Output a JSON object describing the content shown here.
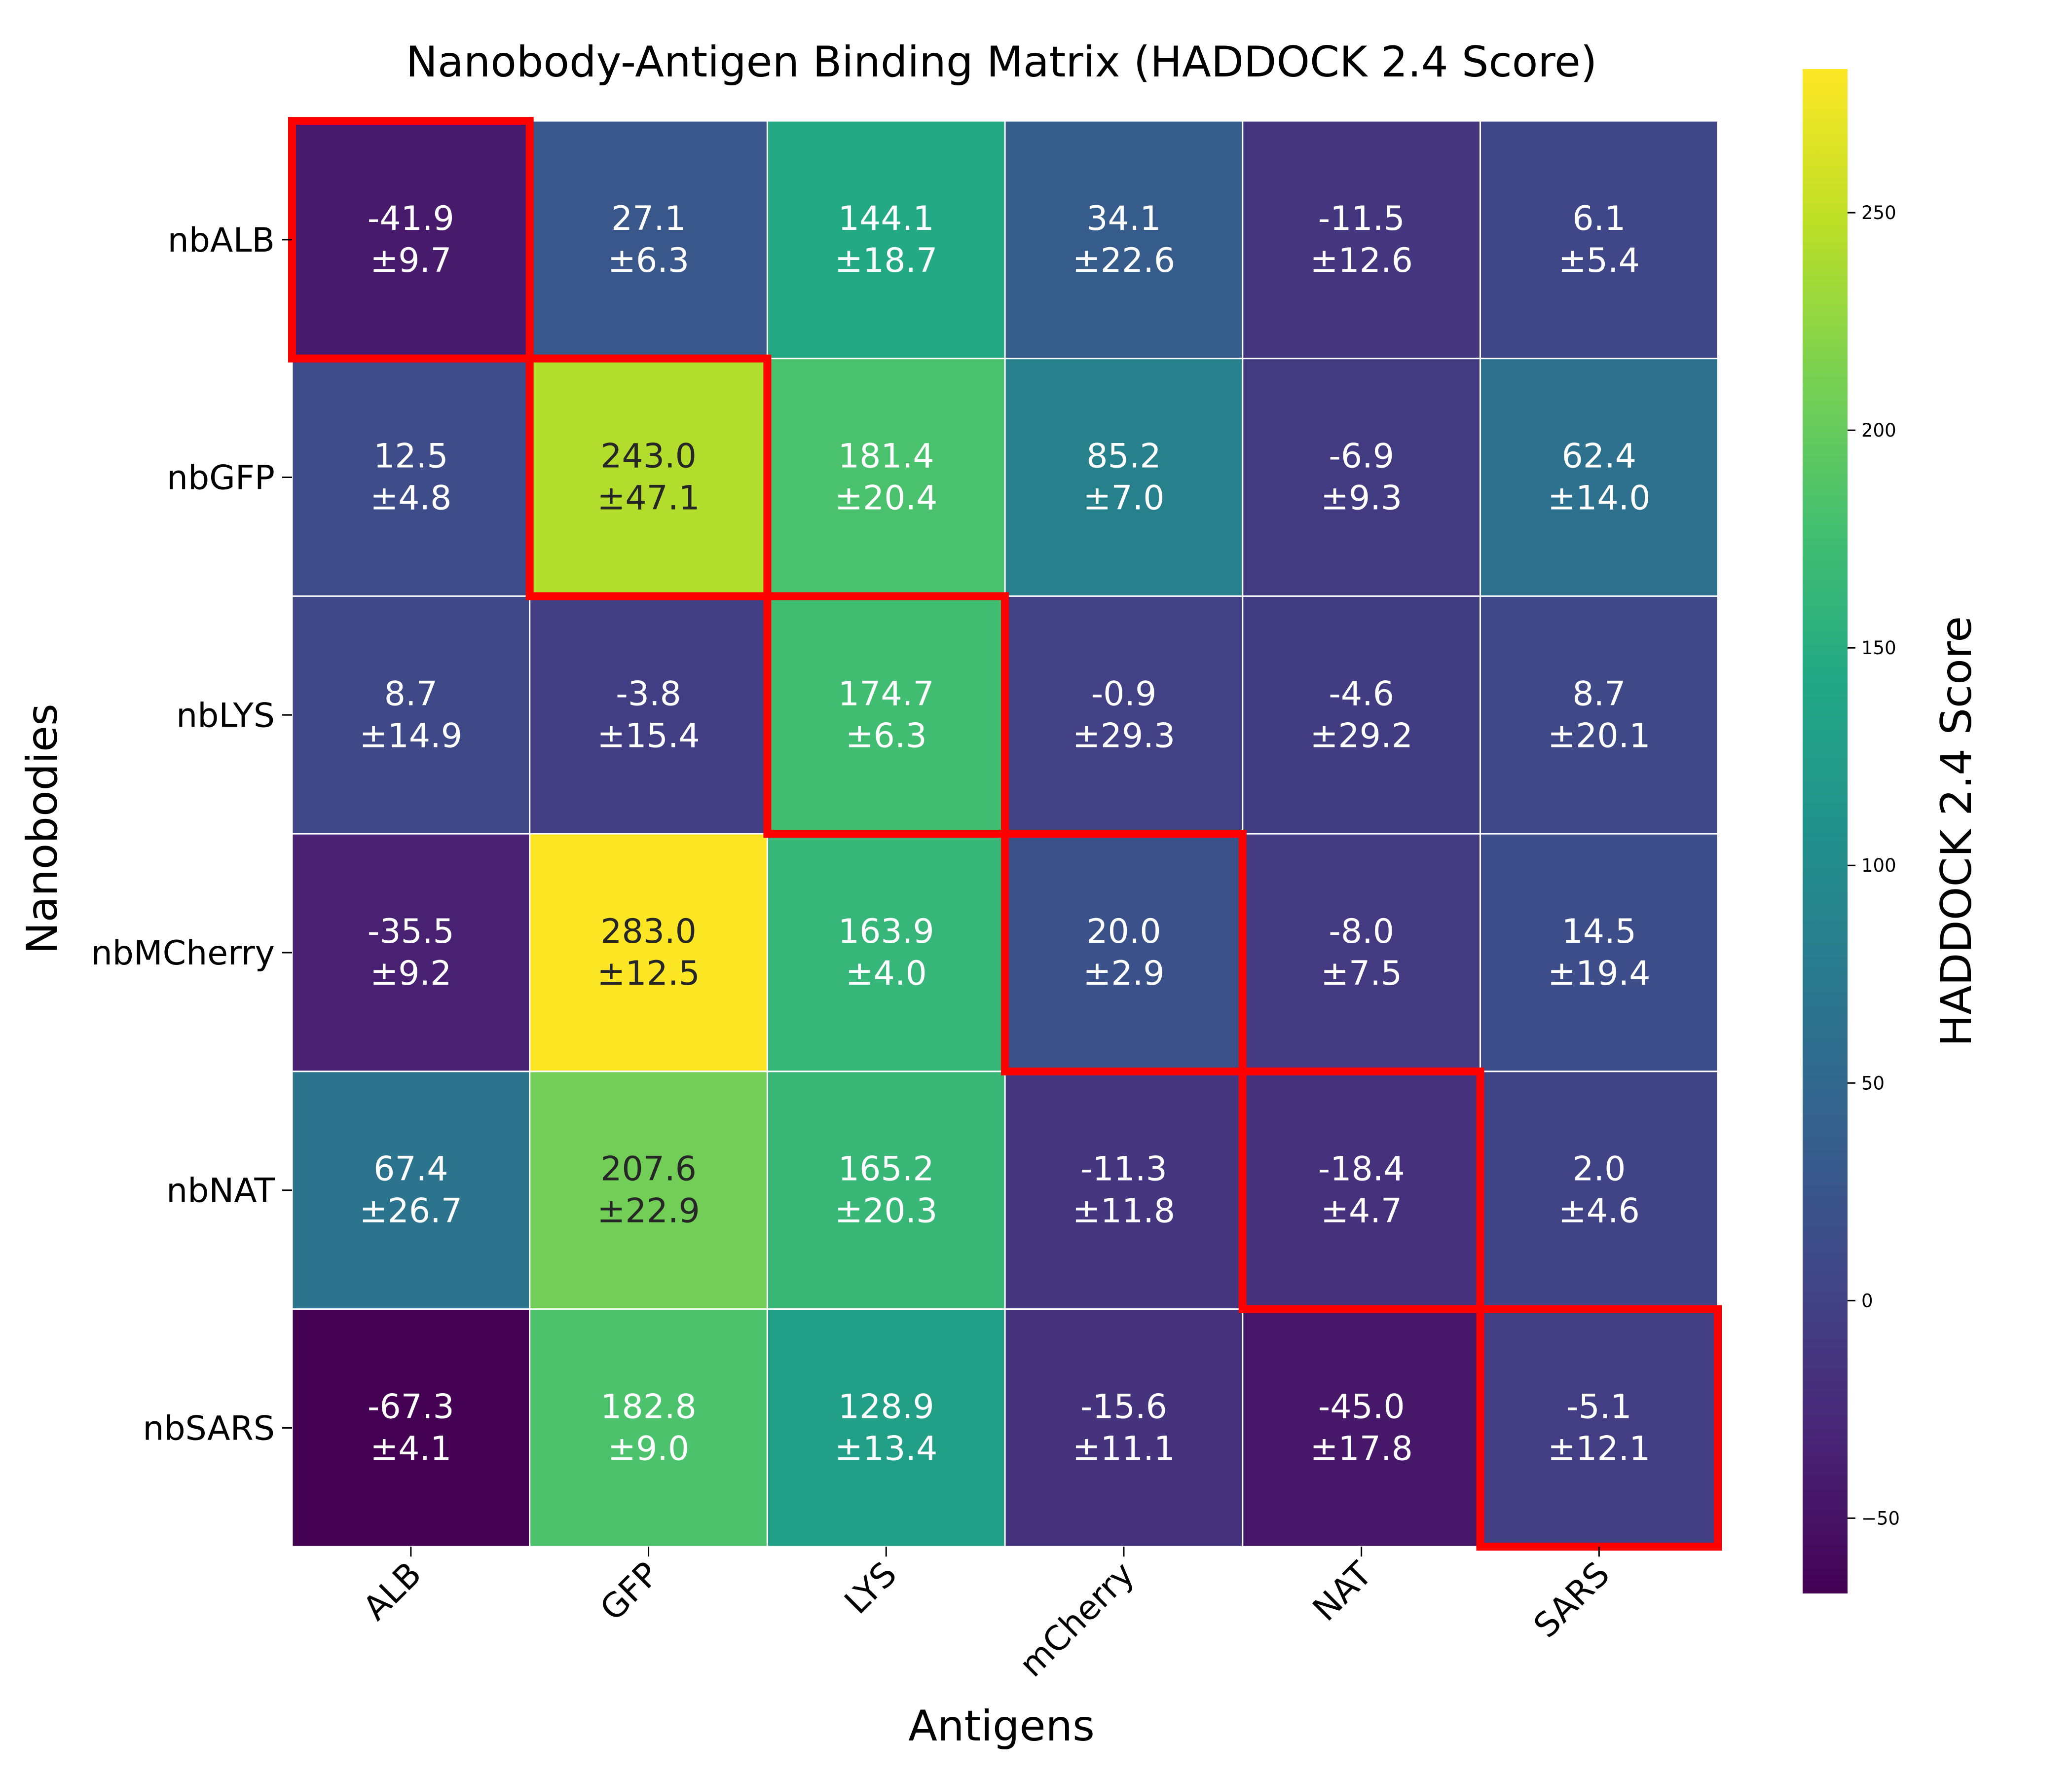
{
  "chart_data": {
    "type": "heatmap",
    "title": "Nanobody-Antigen Binding Matrix (HADDOCK 2.4 Score)",
    "xlabel": "Antigens",
    "ylabel": "Nanobodies",
    "x_categories": [
      "ALB",
      "GFP",
      "LYS",
      "mCherry",
      "NAT",
      "SARS"
    ],
    "y_categories": [
      "nbALB",
      "nbGFP",
      "nbLYS",
      "nbMCherry",
      "nbNAT",
      "nbSARS"
    ],
    "values": [
      [
        -41.9,
        27.1,
        144.1,
        34.1,
        -11.5,
        6.1
      ],
      [
        12.5,
        243.0,
        181.4,
        85.2,
        -6.9,
        62.4
      ],
      [
        8.7,
        -3.8,
        174.7,
        -0.9,
        -4.6,
        8.7
      ],
      [
        -35.5,
        283.0,
        163.9,
        20.0,
        -8.0,
        14.5
      ],
      [
        67.4,
        207.6,
        165.2,
        -11.3,
        -18.4,
        2.0
      ],
      [
        -67.3,
        182.8,
        128.9,
        -15.6,
        -45.0,
        -5.1
      ]
    ],
    "errors": [
      [
        9.7,
        6.3,
        18.7,
        22.6,
        12.6,
        5.4
      ],
      [
        4.8,
        47.1,
        20.4,
        7.0,
        9.3,
        14.0
      ],
      [
        14.9,
        15.4,
        6.3,
        29.3,
        29.2,
        20.1
      ],
      [
        9.2,
        12.5,
        4.0,
        2.9,
        7.5,
        19.4
      ],
      [
        26.7,
        22.9,
        20.3,
        11.8,
        4.7,
        4.6
      ],
      [
        4.1,
        9.0,
        13.4,
        11.1,
        17.8,
        12.1
      ]
    ],
    "colormap": "viridis",
    "color_range": [
      -67.3,
      283.0
    ],
    "colorbar": {
      "label": "HADDOCK 2.4 Score",
      "ticks": [
        -50,
        0,
        50,
        100,
        150,
        200,
        250
      ],
      "tick_labels": [
        "−50",
        "0",
        "50",
        "100",
        "150",
        "200",
        "250"
      ]
    },
    "highlight_diagonal": true,
    "highlight_color": "#ff0000",
    "cell_border_color": "#ffffff"
  }
}
